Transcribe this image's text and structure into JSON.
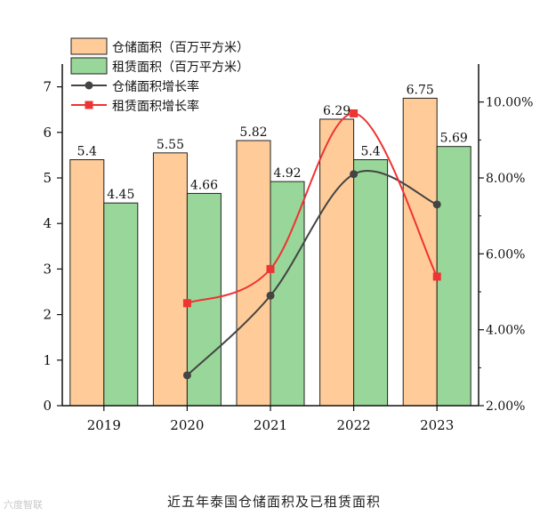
{
  "chart_data": {
    "type": "bar",
    "categories": [
      "2019",
      "2020",
      "2021",
      "2022",
      "2023"
    ],
    "series": [
      {
        "name": "仓储面积（百万平方米）",
        "kind": "bar",
        "axis": "left",
        "color": "#FFCC99",
        "values": [
          5.4,
          5.55,
          5.82,
          6.29,
          6.75
        ],
        "labels": [
          "5.4",
          "5.55",
          "5.82",
          "6.29",
          "6.75"
        ]
      },
      {
        "name": "租赁面积（百万平方米）",
        "kind": "bar",
        "axis": "left",
        "color": "#99D699",
        "values": [
          4.45,
          4.66,
          4.92,
          5.4,
          5.69
        ],
        "labels": [
          "4.45",
          "4.66",
          "4.92",
          "5.4",
          "5.69"
        ]
      },
      {
        "name": "仓储面积增长率",
        "kind": "line",
        "axis": "right",
        "color": "#444444",
        "marker": "circle",
        "values": [
          null,
          2.8,
          4.9,
          8.1,
          7.3
        ]
      },
      {
        "name": "租赁面积增长率",
        "kind": "line",
        "axis": "right",
        "color": "#EE3333",
        "marker": "square",
        "values": [
          null,
          4.7,
          5.6,
          9.7,
          5.4
        ]
      }
    ],
    "left_axis": {
      "min": 0,
      "max": 7.5,
      "ticks": [
        "0",
        "1",
        "2",
        "3",
        "4",
        "5",
        "6",
        "7"
      ]
    },
    "right_axis": {
      "min": 2,
      "max": 11,
      "ticks": [
        "2.00%",
        "4.00%",
        "6.00%",
        "8.00%",
        "10.00%"
      ]
    },
    "legend_position": "top-left",
    "caption": "近五年泰国仓储面积及已租赁面积"
  },
  "watermark": "六度智联"
}
